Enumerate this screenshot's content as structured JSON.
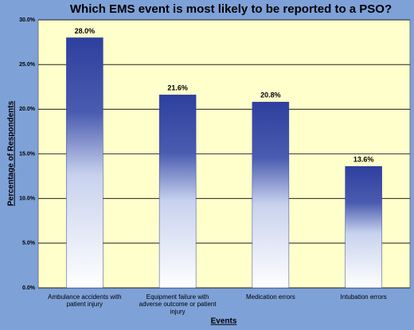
{
  "chart_data": {
    "type": "bar",
    "title": "Which EMS event is most likely to be reported to a PSO?",
    "x_label": "Events",
    "y_label": "Percentage of Respondents",
    "categories": [
      "Ambulance accidents with patient injury",
      "Equipment failure with adverse outcome or patient injury",
      "Medication errors",
      "Intubation errors"
    ],
    "values": [
      28.0,
      21.6,
      20.8,
      13.6
    ],
    "value_labels": [
      "28.0%",
      "21.6%",
      "20.8%",
      "13.6%"
    ],
    "color": "#2e3f9e",
    "ylim": [
      0,
      30
    ],
    "yticks": [
      {
        "value": 0,
        "label": "0.0%"
      },
      {
        "value": 5,
        "label": "5.0%"
      },
      {
        "value": 10,
        "label": "10.0%"
      },
      {
        "value": 15,
        "label": "15.0%"
      },
      {
        "value": 20,
        "label": "20.0%"
      },
      {
        "value": 25,
        "label": "25.0%"
      },
      {
        "value": 30,
        "label": "30.0%"
      }
    ],
    "grid": true
  }
}
